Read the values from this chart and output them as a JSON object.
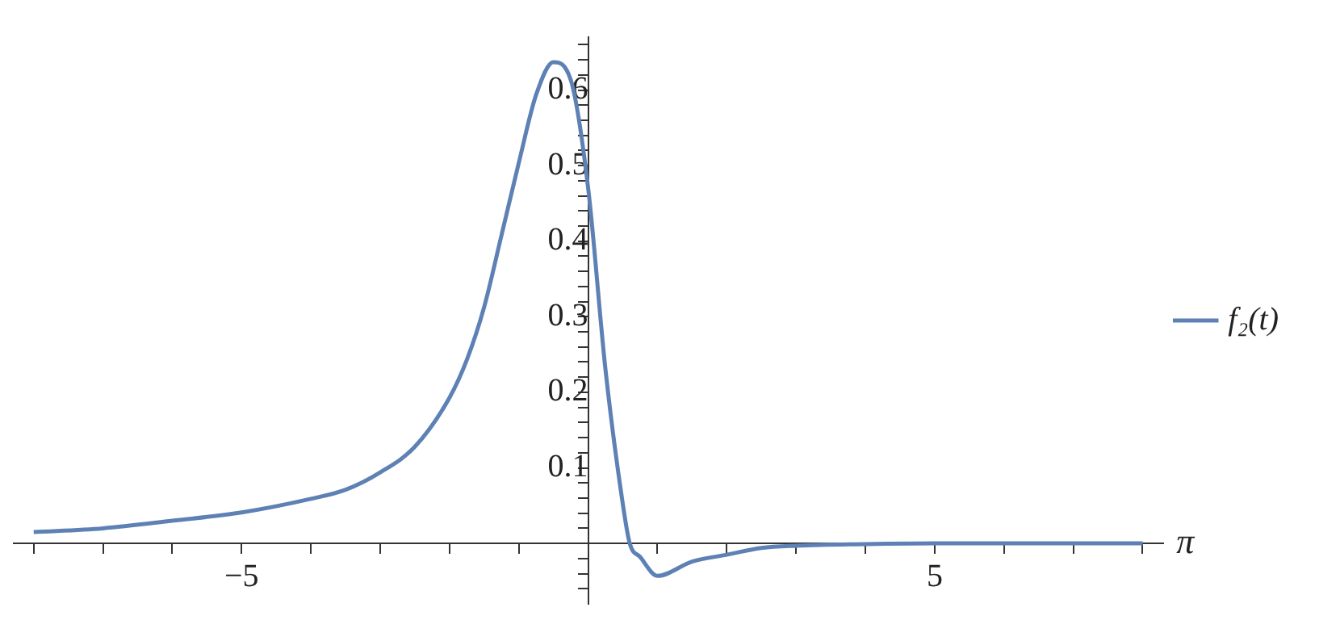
{
  "chart_data": {
    "type": "line",
    "xlabel": "π",
    "legend": "right",
    "grid": false,
    "marker": "none",
    "line_style": "solid",
    "xlim": [
      -8.3,
      8.3
    ],
    "ylim": [
      -0.08,
      0.67
    ],
    "xticks": [
      {
        "value": -8,
        "label": null
      },
      {
        "value": -7,
        "label": null
      },
      {
        "value": -6,
        "label": null
      },
      {
        "value": -5,
        "label": "−5"
      },
      {
        "value": -4,
        "label": null
      },
      {
        "value": -3,
        "label": null
      },
      {
        "value": -2,
        "label": null
      },
      {
        "value": -1,
        "label": null
      },
      {
        "value": 1,
        "label": null
      },
      {
        "value": 2,
        "label": null
      },
      {
        "value": 3,
        "label": null
      },
      {
        "value": 4,
        "label": null
      },
      5,
      {
        "value": 6,
        "label": null
      },
      {
        "value": 7,
        "label": null
      },
      {
        "value": 8,
        "label": null
      }
    ],
    "yticks": [
      {
        "value": -0.06,
        "label": null
      },
      {
        "value": -0.04,
        "label": null
      },
      {
        "value": -0.02,
        "label": null
      },
      {
        "value": 0.02,
        "label": null
      },
      {
        "value": 0.04,
        "label": null
      },
      {
        "value": 0.06,
        "label": null
      },
      {
        "value": 0.08,
        "label": null
      },
      0.1,
      {
        "value": 0.12,
        "label": null
      },
      {
        "value": 0.14,
        "label": null
      },
      {
        "value": 0.16,
        "label": null
      },
      {
        "value": 0.18,
        "label": null
      },
      0.2,
      {
        "value": 0.22,
        "label": null
      },
      {
        "value": 0.24,
        "label": null
      },
      {
        "value": 0.26,
        "label": null
      },
      {
        "value": 0.28,
        "label": null
      },
      0.3,
      {
        "value": 0.32,
        "label": null
      },
      {
        "value": 0.34,
        "label": null
      },
      {
        "value": 0.36,
        "label": null
      },
      {
        "value": 0.38,
        "label": null
      },
      0.4,
      {
        "value": 0.42,
        "label": null
      },
      {
        "value": 0.44,
        "label": null
      },
      {
        "value": 0.46,
        "label": null
      },
      {
        "value": 0.48,
        "label": null
      },
      0.5,
      {
        "value": 0.52,
        "label": null
      },
      {
        "value": 0.54,
        "label": null
      },
      {
        "value": 0.56,
        "label": null
      },
      {
        "value": 0.58,
        "label": null
      },
      0.6,
      {
        "value": 0.62,
        "label": null
      },
      {
        "value": 0.64,
        "label": null
      },
      {
        "value": 0.66,
        "label": null
      }
    ],
    "x": [
      -8,
      -7,
      -6,
      -5,
      -4,
      -3.5,
      -3,
      -2.5,
      -2,
      -1.75,
      -1.5,
      -1.25,
      -1,
      -0.75,
      -0.5,
      -0.25,
      0,
      0.25,
      0.5,
      0.6,
      0.75,
      1,
      1.5,
      2,
      2.5,
      3,
      4,
      5,
      6,
      7,
      8
    ],
    "series": [
      {
        "name": "f₂(t)",
        "color": "#5e81b5",
        "values": [
          0.015,
          0.02,
          0.03,
          0.041,
          0.059,
          0.071,
          0.094,
          0.128,
          0.193,
          0.243,
          0.313,
          0.408,
          0.504,
          0.594,
          0.637,
          0.613,
          0.47,
          0.23,
          0.052,
          0,
          -0.018,
          -0.043,
          -0.024,
          -0.015,
          -0.006,
          -0.003,
          -0.001,
          0,
          0,
          0,
          0
        ]
      }
    ]
  }
}
